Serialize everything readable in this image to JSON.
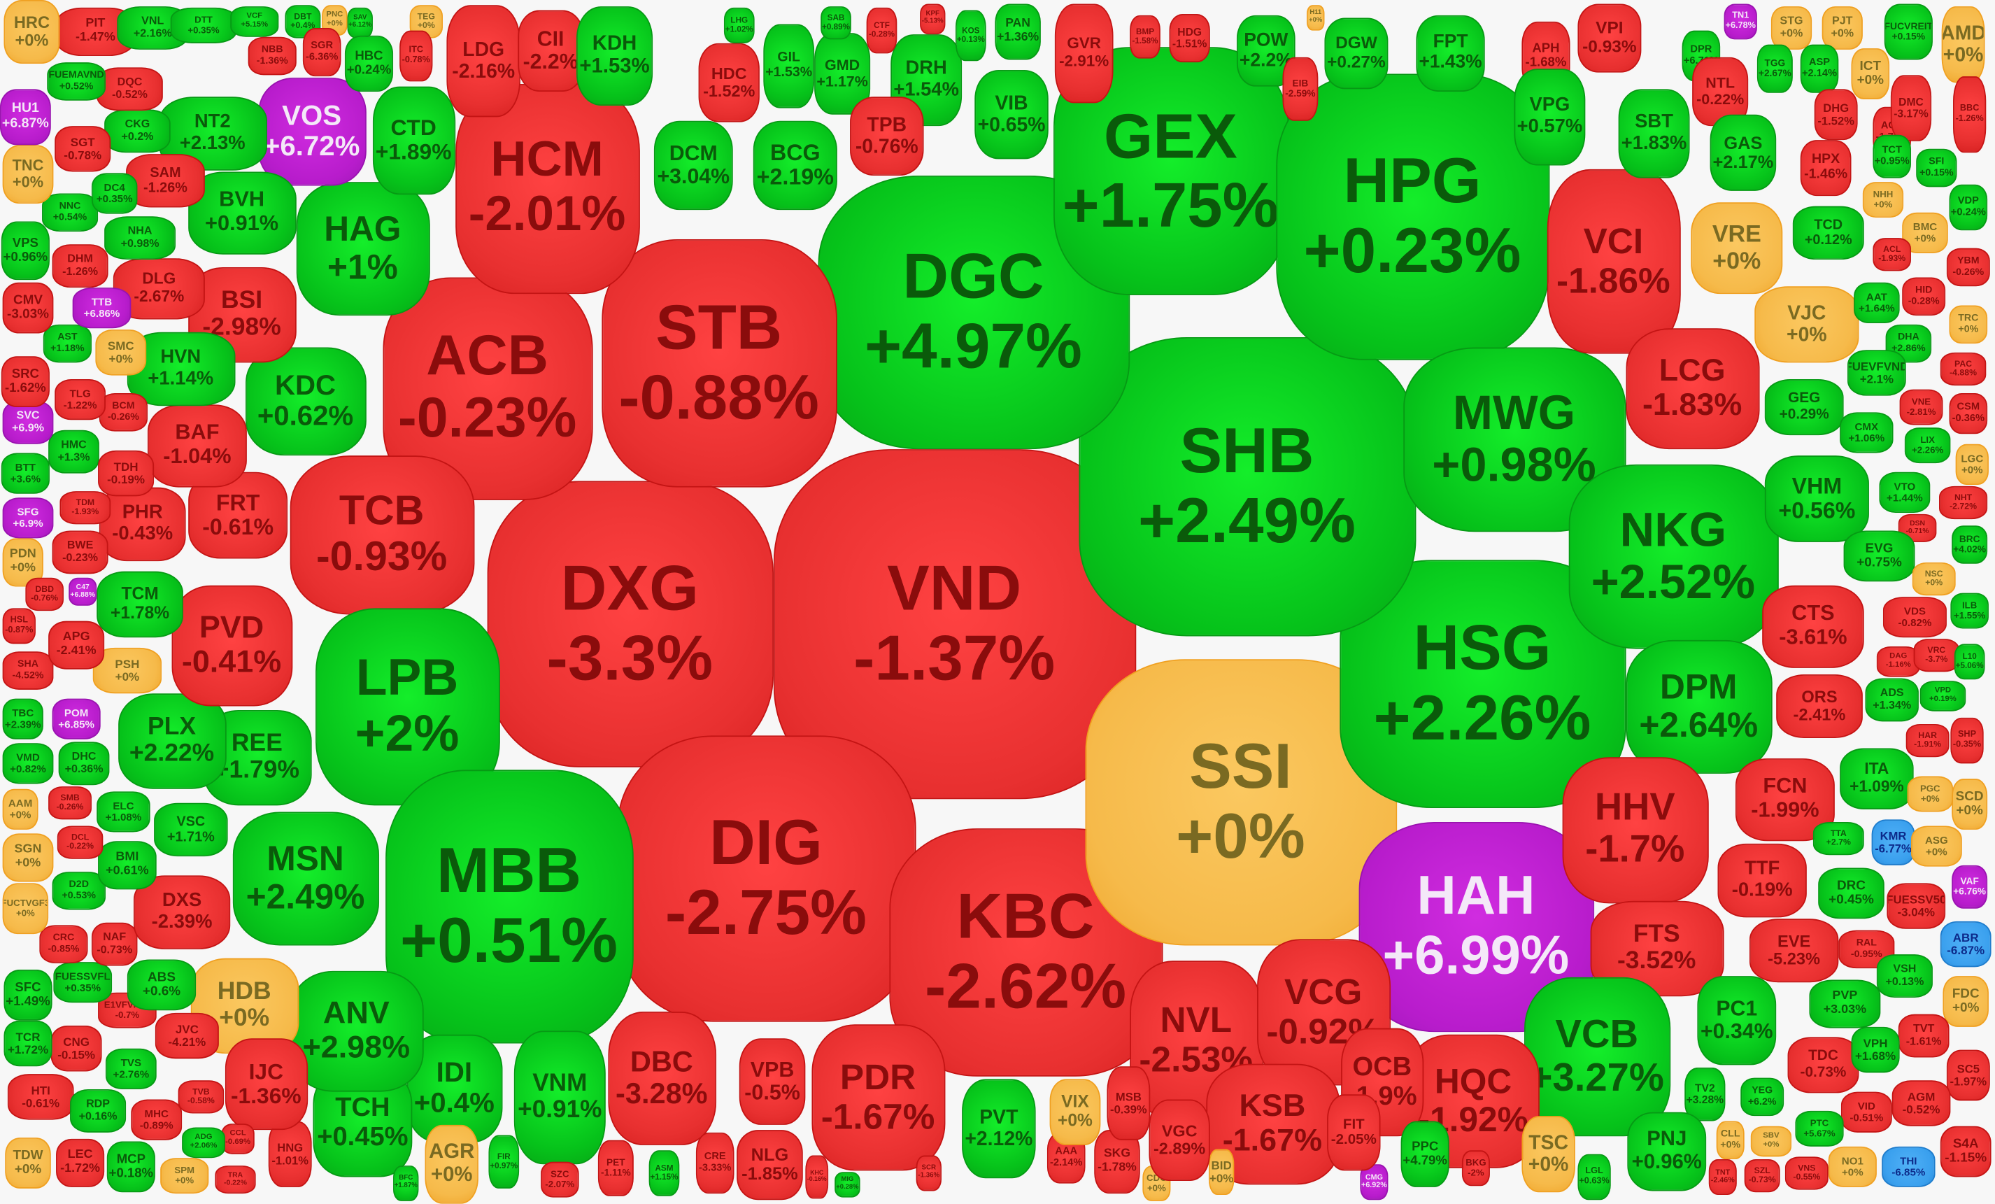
{
  "colors": {
    "up": "#06c21a",
    "down": "#e83030",
    "reference": "#f6ba4a",
    "ceiling": "#b81ccc",
    "floor": "#3aa0ee"
  },
  "stocks": [
    {
      "t": "VND",
      "c": "-1.37%",
      "s": "d"
    },
    {
      "t": "DXG",
      "c": "-3.3%",
      "s": "d"
    },
    {
      "t": "DIG",
      "c": "-2.75%",
      "s": "d"
    },
    {
      "t": "KBC",
      "c": "-2.62%",
      "s": "d"
    },
    {
      "t": "SSI",
      "c": "+0%",
      "s": "r"
    },
    {
      "t": "HAH",
      "c": "+6.99%",
      "s": "c"
    },
    {
      "t": "HSG",
      "c": "+2.26%",
      "s": "u"
    },
    {
      "t": "SHB",
      "c": "+2.49%",
      "s": "u"
    },
    {
      "t": "DGC",
      "c": "+4.97%",
      "s": "u"
    },
    {
      "t": "GEX",
      "c": "+1.75%",
      "s": "u"
    },
    {
      "t": "HPG",
      "c": "+0.23%",
      "s": "u"
    },
    {
      "t": "STB",
      "c": "-0.88%",
      "s": "d"
    },
    {
      "t": "ACB",
      "c": "-0.23%",
      "s": "d"
    },
    {
      "t": "HCM",
      "c": "-2.01%",
      "s": "d"
    },
    {
      "t": "TCB",
      "c": "-0.93%",
      "s": "d"
    },
    {
      "t": "LPB",
      "c": "+2%",
      "s": "u"
    },
    {
      "t": "MBB",
      "c": "+0.51%",
      "s": "u"
    },
    {
      "t": "MWG",
      "c": "+0.98%",
      "s": "u"
    },
    {
      "t": "NKG",
      "c": "+2.52%",
      "s": "u"
    },
    {
      "t": "VCI",
      "c": "-1.86%",
      "s": "d"
    },
    {
      "t": "LCG",
      "c": "-1.83%",
      "s": "d"
    },
    {
      "t": "DPM",
      "c": "+2.64%",
      "s": "u"
    },
    {
      "t": "HHV",
      "c": "-1.7%",
      "s": "d"
    },
    {
      "t": "FTS",
      "c": "-3.52%",
      "s": "d"
    },
    {
      "t": "VCB",
      "c": "+3.27%",
      "s": "u"
    },
    {
      "t": "NVL",
      "c": "-2.53%",
      "s": "d"
    },
    {
      "t": "VCG",
      "c": "-0.92%",
      "s": "d"
    },
    {
      "t": "KSB",
      "c": "-1.67%",
      "s": "d"
    },
    {
      "t": "HQC",
      "c": "-1.92%",
      "s": "d"
    },
    {
      "t": "OCB",
      "c": "-1.9%",
      "s": "d"
    },
    {
      "t": "PDR",
      "c": "-1.67%",
      "s": "d"
    },
    {
      "t": "DBC",
      "c": "-3.28%",
      "s": "d"
    },
    {
      "t": "VPB",
      "c": "-0.5%",
      "s": "d"
    },
    {
      "t": "NLG",
      "c": "-1.85%",
      "s": "d"
    },
    {
      "t": "VNM",
      "c": "+0.91%",
      "s": "u"
    },
    {
      "t": "IDI",
      "c": "+0.4%",
      "s": "u"
    },
    {
      "t": "TCH",
      "c": "+0.45%",
      "s": "u"
    },
    {
      "t": "ANV",
      "c": "+2.98%",
      "s": "u"
    },
    {
      "t": "MSN",
      "c": "+2.49%",
      "s": "u"
    },
    {
      "t": "HDB",
      "c": "+0%",
      "s": "r"
    },
    {
      "t": "REE",
      "c": "+1.79%",
      "s": "u"
    },
    {
      "t": "PLX",
      "c": "+2.22%",
      "s": "u"
    },
    {
      "t": "PVD",
      "c": "-0.41%",
      "s": "d"
    },
    {
      "t": "KDC",
      "c": "+0.62%",
      "s": "u"
    },
    {
      "t": "HAG",
      "c": "+1%",
      "s": "u"
    },
    {
      "t": "VOS",
      "c": "+6.72%",
      "s": "c"
    },
    {
      "t": "CTD",
      "c": "+1.89%",
      "s": "u"
    },
    {
      "t": "BSI",
      "c": "-2.98%",
      "s": "d"
    },
    {
      "t": "BVH",
      "c": "+0.91%",
      "s": "u"
    },
    {
      "t": "NT2",
      "c": "+2.13%",
      "s": "u"
    },
    {
      "t": "FRT",
      "c": "-0.61%",
      "s": "d"
    },
    {
      "t": "BAF",
      "c": "-1.04%",
      "s": "d"
    },
    {
      "t": "PHR",
      "c": "-0.43%",
      "s": "d"
    },
    {
      "t": "TCM",
      "c": "+1.78%",
      "s": "u"
    },
    {
      "t": "HVN",
      "c": "+1.14%",
      "s": "u"
    },
    {
      "t": "DLG",
      "c": "-2.67%",
      "s": "d"
    },
    {
      "t": "SAM",
      "c": "-1.26%",
      "s": "d"
    },
    {
      "t": "CKG",
      "c": "+0.2%",
      "s": "u"
    },
    {
      "t": "DQC",
      "c": "-0.52%",
      "s": "d"
    },
    {
      "t": "PIT",
      "c": "-1.47%",
      "s": "d"
    },
    {
      "t": "VNL",
      "c": "+2.16%",
      "s": "u"
    },
    {
      "t": "DTT",
      "c": "+0.35%",
      "s": "u"
    },
    {
      "t": "VCF",
      "c": "+5.15%",
      "s": "u"
    },
    {
      "t": "NBB",
      "c": "-1.36%",
      "s": "d"
    },
    {
      "t": "DBT",
      "c": "+0.4%",
      "s": "u"
    },
    {
      "t": "PNC",
      "c": "+0%",
      "s": "r"
    },
    {
      "t": "SAV",
      "c": "+6.12%",
      "s": "u"
    },
    {
      "t": "TEG",
      "c": "+0%",
      "s": "r"
    },
    {
      "t": "SGR",
      "c": "-6.36%",
      "s": "d"
    },
    {
      "t": "HBC",
      "c": "+0.24%",
      "s": "u"
    },
    {
      "t": "ITC",
      "c": "-0.78%",
      "s": "d"
    },
    {
      "t": "LDG",
      "c": "-2.16%",
      "s": "d"
    },
    {
      "t": "CII",
      "c": "-2.2%",
      "s": "d"
    },
    {
      "t": "KDH",
      "c": "+1.53%",
      "s": "u"
    },
    {
      "t": "HDC",
      "c": "-1.52%",
      "s": "d"
    },
    {
      "t": "GIL",
      "c": "+1.53%",
      "s": "u"
    },
    {
      "t": "GMD",
      "c": "+1.17%",
      "s": "u"
    },
    {
      "t": "DRH",
      "c": "+1.54%",
      "s": "u"
    },
    {
      "t": "LHG",
      "c": "+1.02%",
      "s": "u"
    },
    {
      "t": "SAB",
      "c": "+0.89%",
      "s": "u"
    },
    {
      "t": "CTF",
      "c": "-0.28%",
      "s": "d"
    },
    {
      "t": "KPF",
      "c": "-5.13%",
      "s": "d"
    },
    {
      "t": "KOS",
      "c": "+0.13%",
      "s": "u"
    },
    {
      "t": "PAN",
      "c": "+1.36%",
      "s": "u"
    },
    {
      "t": "DCM",
      "c": "+3.04%",
      "s": "u"
    },
    {
      "t": "BCG",
      "c": "+2.19%",
      "s": "u"
    },
    {
      "t": "TPB",
      "c": "-0.76%",
      "s": "d"
    },
    {
      "t": "VIB",
      "c": "+0.65%",
      "s": "u"
    },
    {
      "t": "GVR",
      "c": "-2.91%",
      "s": "d"
    },
    {
      "t": "BMP",
      "c": "-1.58%",
      "s": "d"
    },
    {
      "t": "HDG",
      "c": "-1.51%",
      "s": "d"
    },
    {
      "t": "H11",
      "c": "+0%",
      "s": "r"
    },
    {
      "t": "POW",
      "c": "+2.2%",
      "s": "u"
    },
    {
      "t": "EIB",
      "c": "-2.59%",
      "s": "d"
    },
    {
      "t": "DGW",
      "c": "+0.27%",
      "s": "u"
    },
    {
      "t": "FPT",
      "c": "+1.43%",
      "s": "u"
    },
    {
      "t": "APH",
      "c": "-1.68%",
      "s": "d"
    },
    {
      "t": "VPI",
      "c": "-0.93%",
      "s": "d"
    },
    {
      "t": "VPG",
      "c": "+0.57%",
      "s": "u"
    },
    {
      "t": "DPR",
      "c": "+6.71%",
      "s": "u"
    },
    {
      "t": "TN1",
      "c": "+6.78%",
      "s": "c"
    },
    {
      "t": "STG",
      "c": "+0%",
      "s": "r"
    },
    {
      "t": "PJT",
      "c": "+0%",
      "s": "r"
    },
    {
      "t": "FUCVREIT",
      "c": "+0.15%",
      "s": "u"
    },
    {
      "t": "AMD",
      "c": "+0%",
      "s": "r"
    },
    {
      "t": "NTL",
      "c": "-0.22%",
      "s": "d"
    },
    {
      "t": "TGG",
      "c": "+2.67%",
      "s": "u"
    },
    {
      "t": "ASP",
      "c": "+2.14%",
      "s": "u"
    },
    {
      "t": "ICT",
      "c": "+0%",
      "s": "r"
    },
    {
      "t": "SBT",
      "c": "+1.83%",
      "s": "u"
    },
    {
      "t": "GAS",
      "c": "+2.17%",
      "s": "u"
    },
    {
      "t": "DHG",
      "c": "-1.52%",
      "s": "d"
    },
    {
      "t": "ACC",
      "c": "-1.77%",
      "s": "d"
    },
    {
      "t": "DMC",
      "c": "-3.17%",
      "s": "d"
    },
    {
      "t": "BBC",
      "c": "-1.26%",
      "s": "d"
    },
    {
      "t": "HPX",
      "c": "-1.46%",
      "s": "d"
    },
    {
      "t": "TCT",
      "c": "+0.95%",
      "s": "u"
    },
    {
      "t": "SFI",
      "c": "+0.15%",
      "s": "u"
    },
    {
      "t": "NHH",
      "c": "+0%",
      "s": "r"
    },
    {
      "t": "VDP",
      "c": "+0.24%",
      "s": "u"
    },
    {
      "t": "VRE",
      "c": "+0%",
      "s": "r"
    },
    {
      "t": "TCD",
      "c": "+0.12%",
      "s": "u"
    },
    {
      "t": "BMC",
      "c": "+0%",
      "s": "r"
    },
    {
      "t": "ACL",
      "c": "-1.93%",
      "s": "d"
    },
    {
      "t": "YBM",
      "c": "-0.26%",
      "s": "d"
    },
    {
      "t": "VJC",
      "c": "+0%",
      "s": "r"
    },
    {
      "t": "AAT",
      "c": "+1.64%",
      "s": "u"
    },
    {
      "t": "HID",
      "c": "-0.28%",
      "s": "d"
    },
    {
      "t": "TRC",
      "c": "+0%",
      "s": "r"
    },
    {
      "t": "DHA",
      "c": "+2.86%",
      "s": "u"
    },
    {
      "t": "FUEVFVND",
      "c": "+2.1%",
      "s": "u"
    },
    {
      "t": "PAC",
      "c": "-4.88%",
      "s": "d"
    },
    {
      "t": "GEG",
      "c": "+0.29%",
      "s": "u"
    },
    {
      "t": "VNE",
      "c": "-2.81%",
      "s": "d"
    },
    {
      "t": "CSM",
      "c": "-0.36%",
      "s": "d"
    },
    {
      "t": "CMX",
      "c": "+1.06%",
      "s": "u"
    },
    {
      "t": "LIX",
      "c": "+2.26%",
      "s": "u"
    },
    {
      "t": "LGC",
      "c": "+0%",
      "s": "r"
    },
    {
      "t": "VHM",
      "c": "+0.56%",
      "s": "u"
    },
    {
      "t": "VTO",
      "c": "+1.44%",
      "s": "u"
    },
    {
      "t": "NHT",
      "c": "-2.72%",
      "s": "d"
    },
    {
      "t": "DSN",
      "c": "-0.71%",
      "s": "d"
    },
    {
      "t": "BRC",
      "c": "+4.02%",
      "s": "u"
    },
    {
      "t": "EVG",
      "c": "+0.75%",
      "s": "u"
    },
    {
      "t": "NSC",
      "c": "+0%",
      "s": "r"
    },
    {
      "t": "ILB",
      "c": "+1.55%",
      "s": "u"
    },
    {
      "t": "CTS",
      "c": "-3.61%",
      "s": "d"
    },
    {
      "t": "VDS",
      "c": "-0.82%",
      "s": "d"
    },
    {
      "t": "DAG",
      "c": "-1.16%",
      "s": "d"
    },
    {
      "t": "VRC",
      "c": "-3.7%",
      "s": "d"
    },
    {
      "t": "L10",
      "c": "+5.06%",
      "s": "u"
    },
    {
      "t": "ORS",
      "c": "-2.41%",
      "s": "d"
    },
    {
      "t": "ADS",
      "c": "+1.34%",
      "s": "u"
    },
    {
      "t": "VPD",
      "c": "+0.19%",
      "s": "u"
    },
    {
      "t": "HAR",
      "c": "-1.91%",
      "s": "d"
    },
    {
      "t": "SHP",
      "c": "-0.35%",
      "s": "d"
    },
    {
      "t": "FCN",
      "c": "-1.99%",
      "s": "d"
    },
    {
      "t": "ITA",
      "c": "+1.09%",
      "s": "u"
    },
    {
      "t": "PGC",
      "c": "+0%",
      "s": "r"
    },
    {
      "t": "SCD",
      "c": "+0%",
      "s": "r"
    },
    {
      "t": "TTA",
      "c": "+2.7%",
      "s": "u"
    },
    {
      "t": "KMR",
      "c": "-6.77%",
      "s": "f"
    },
    {
      "t": "ASG",
      "c": "+0%",
      "s": "r"
    },
    {
      "t": "VAF",
      "c": "+6.76%",
      "s": "c"
    },
    {
      "t": "TTF",
      "c": "-0.19%",
      "s": "d"
    },
    {
      "t": "DRC",
      "c": "+0.45%",
      "s": "u"
    },
    {
      "t": "FUESSV50",
      "c": "-3.04%",
      "s": "d"
    },
    {
      "t": "EVE",
      "c": "-5.23%",
      "s": "d"
    },
    {
      "t": "RAL",
      "c": "-0.95%",
      "s": "d"
    },
    {
      "t": "ABR",
      "c": "-6.87%",
      "s": "f"
    },
    {
      "t": "VSH",
      "c": "+0.13%",
      "s": "u"
    },
    {
      "t": "PVP",
      "c": "+3.03%",
      "s": "u"
    },
    {
      "t": "FDC",
      "c": "+0%",
      "s": "r"
    },
    {
      "t": "TVT",
      "c": "-1.61%",
      "s": "d"
    },
    {
      "t": "TDC",
      "c": "-0.73%",
      "s": "d"
    },
    {
      "t": "VPH",
      "c": "+1.68%",
      "s": "u"
    },
    {
      "t": "SC5",
      "c": "-1.97%",
      "s": "d"
    },
    {
      "t": "AGM",
      "c": "-0.52%",
      "s": "d"
    },
    {
      "t": "VID",
      "c": "-0.51%",
      "s": "d"
    },
    {
      "t": "PTC",
      "c": "+5.67%",
      "s": "u"
    },
    {
      "t": "S4A",
      "c": "-1.15%",
      "s": "d"
    },
    {
      "t": "THI",
      "c": "-6.85%",
      "s": "f"
    },
    {
      "t": "NO1",
      "c": "+0%",
      "s": "r"
    },
    {
      "t": "VNS",
      "c": "-0.55%",
      "s": "d"
    },
    {
      "t": "SZL",
      "c": "-0.73%",
      "s": "d"
    },
    {
      "t": "TNT",
      "c": "-2.46%",
      "s": "d"
    },
    {
      "t": "SBV",
      "c": "+0%",
      "s": "r"
    },
    {
      "t": "CLL",
      "c": "+0%",
      "s": "r"
    },
    {
      "t": "YEG",
      "c": "+6.2%",
      "s": "u"
    },
    {
      "t": "PC1",
      "c": "+0.34%",
      "s": "u"
    },
    {
      "t": "TV2",
      "c": "+3.28%",
      "s": "u"
    },
    {
      "t": "PNJ",
      "c": "+0.96%",
      "s": "u"
    },
    {
      "t": "LGL",
      "c": "+0.63%",
      "s": "u"
    },
    {
      "t": "TSC",
      "c": "+0%",
      "s": "r"
    },
    {
      "t": "BKG",
      "c": "-2%",
      "s": "d"
    },
    {
      "t": "CMG",
      "c": "+6.92%",
      "s": "c"
    },
    {
      "t": "PPC",
      "c": "+4.79%",
      "s": "u"
    },
    {
      "t": "FIT",
      "c": "-2.05%",
      "s": "d"
    },
    {
      "t": "BID",
      "c": "+0%",
      "s": "r"
    },
    {
      "t": "CDC",
      "c": "+0%",
      "s": "r"
    },
    {
      "t": "VGC",
      "c": "-2.89%",
      "s": "d"
    },
    {
      "t": "SKG",
      "c": "-1.78%",
      "s": "d"
    },
    {
      "t": "AAA",
      "c": "-2.14%",
      "s": "d"
    },
    {
      "t": "MSB",
      "c": "-0.39%",
      "s": "d"
    },
    {
      "t": "VIX",
      "c": "+0%",
      "s": "r"
    },
    {
      "t": "PVT",
      "c": "+2.12%",
      "s": "u"
    },
    {
      "t": "SCR",
      "c": "-1.36%",
      "s": "d"
    },
    {
      "t": "MIG",
      "c": "+0.28%",
      "s": "u"
    },
    {
      "t": "KHC",
      "c": "-0.16%",
      "s": "d"
    },
    {
      "t": "CRE",
      "c": "-3.33%",
      "s": "d"
    },
    {
      "t": "ASM",
      "c": "+1.15%",
      "s": "u"
    },
    {
      "t": "PET",
      "c": "-1.11%",
      "s": "d"
    },
    {
      "t": "SZC",
      "c": "-2.07%",
      "s": "d"
    },
    {
      "t": "FIR",
      "c": "+0.97%",
      "s": "u"
    },
    {
      "t": "AGR",
      "c": "+0%",
      "s": "r"
    },
    {
      "t": "BFC",
      "c": "+1.87%",
      "s": "u"
    },
    {
      "t": "HNG",
      "c": "-1.01%",
      "s": "d"
    },
    {
      "t": "IJC",
      "c": "-1.36%",
      "s": "d"
    },
    {
      "t": "TRA",
      "c": "-0.22%",
      "s": "d"
    },
    {
      "t": "CCL",
      "c": "-0.69%",
      "s": "d"
    },
    {
      "t": "ADG",
      "c": "+2.06%",
      "s": "u"
    },
    {
      "t": "SPM",
      "c": "+0%",
      "s": "r"
    },
    {
      "t": "MCP",
      "c": "+0.18%",
      "s": "u"
    },
    {
      "t": "LEC",
      "c": "-1.72%",
      "s": "d"
    },
    {
      "t": "TDW",
      "c": "+0%",
      "s": "r"
    },
    {
      "t": "HTI",
      "c": "-0.61%",
      "s": "d"
    },
    {
      "t": "RDP",
      "c": "+0.16%",
      "s": "u"
    },
    {
      "t": "MHC",
      "c": "-0.89%",
      "s": "d"
    },
    {
      "t": "TVB",
      "c": "-0.58%",
      "s": "d"
    },
    {
      "t": "TVS",
      "c": "+2.76%",
      "s": "u"
    },
    {
      "t": "JVC",
      "c": "-4.21%",
      "s": "d"
    },
    {
      "t": "CNG",
      "c": "-0.15%",
      "s": "d"
    },
    {
      "t": "TCR",
      "c": "+1.72%",
      "s": "u"
    },
    {
      "t": "E1VFVN30",
      "c": "-0.7%",
      "s": "d"
    },
    {
      "t": "SFC",
      "c": "+1.49%",
      "s": "u"
    },
    {
      "t": "FUESSVFL",
      "c": "+0.35%",
      "s": "u"
    },
    {
      "t": "ABS",
      "c": "+0.6%",
      "s": "u"
    },
    {
      "t": "CRC",
      "c": "-0.85%",
      "s": "d"
    },
    {
      "t": "NAF",
      "c": "-0.73%",
      "s": "d"
    },
    {
      "t": "FUCTVGF3",
      "c": "+0%",
      "s": "r"
    },
    {
      "t": "DXS",
      "c": "-2.39%",
      "s": "d"
    },
    {
      "t": "D2D",
      "c": "+0.53%",
      "s": "u"
    },
    {
      "t": "SGN",
      "c": "+0%",
      "s": "r"
    },
    {
      "t": "BMI",
      "c": "+0.61%",
      "s": "u"
    },
    {
      "t": "DCL",
      "c": "-0.22%",
      "s": "d"
    },
    {
      "t": "VSC",
      "c": "+1.71%",
      "s": "u"
    },
    {
      "t": "AAM",
      "c": "+0%",
      "s": "r"
    },
    {
      "t": "SMB",
      "c": "-0.26%",
      "s": "d"
    },
    {
      "t": "ELC",
      "c": "+1.08%",
      "s": "u"
    },
    {
      "t": "VMD",
      "c": "+0.82%",
      "s": "u"
    },
    {
      "t": "DHC",
      "c": "+0.36%",
      "s": "u"
    },
    {
      "t": "TBC",
      "c": "+2.39%",
      "s": "u"
    },
    {
      "t": "POM",
      "c": "+6.85%",
      "s": "c"
    },
    {
      "t": "SHA",
      "c": "-4.52%",
      "s": "d"
    },
    {
      "t": "PSH",
      "c": "+0%",
      "s": "r"
    },
    {
      "t": "HSL",
      "c": "-0.87%",
      "s": "d"
    },
    {
      "t": "APG",
      "c": "-2.41%",
      "s": "d"
    },
    {
      "t": "PDN",
      "c": "+0%",
      "s": "r"
    },
    {
      "t": "DBD",
      "c": "-0.76%",
      "s": "d"
    },
    {
      "t": "C47",
      "c": "+6.88%",
      "s": "c"
    },
    {
      "t": "SFG",
      "c": "+6.9%",
      "s": "c"
    },
    {
      "t": "BWE",
      "c": "-0.23%",
      "s": "d"
    },
    {
      "t": "TDM",
      "c": "-1.93%",
      "s": "d"
    },
    {
      "t": "BTT",
      "c": "+3.6%",
      "s": "u"
    },
    {
      "t": "HMC",
      "c": "+1.3%",
      "s": "u"
    },
    {
      "t": "TDH",
      "c": "-0.19%",
      "s": "d"
    },
    {
      "t": "SVC",
      "c": "+6.9%",
      "s": "c"
    },
    {
      "t": "BCM",
      "c": "-0.26%",
      "s": "d"
    },
    {
      "t": "TLG",
      "c": "-1.22%",
      "s": "d"
    },
    {
      "t": "SRC",
      "c": "-1.62%",
      "s": "d"
    },
    {
      "t": "SMC",
      "c": "+0%",
      "s": "r"
    },
    {
      "t": "AST",
      "c": "+1.18%",
      "s": "u"
    },
    {
      "t": "CMV",
      "c": "-3.03%",
      "s": "d"
    },
    {
      "t": "TTB",
      "c": "+6.86%",
      "s": "c"
    },
    {
      "t": "DHM",
      "c": "-1.26%",
      "s": "d"
    },
    {
      "t": "VPS",
      "c": "+0.96%",
      "s": "u"
    },
    {
      "t": "NHA",
      "c": "+0.98%",
      "s": "u"
    },
    {
      "t": "NNC",
      "c": "+0.54%",
      "s": "u"
    },
    {
      "t": "DC4",
      "c": "+0.35%",
      "s": "u"
    },
    {
      "t": "TNC",
      "c": "+0%",
      "s": "r"
    },
    {
      "t": "SGT",
      "c": "-0.78%",
      "s": "d"
    },
    {
      "t": "HU1",
      "c": "+6.87%",
      "s": "c"
    },
    {
      "t": "FUEMAVND",
      "c": "+0.52%",
      "s": "u"
    },
    {
      "t": "HRC",
      "c": "+0%",
      "s": "r"
    }
  ]
}
